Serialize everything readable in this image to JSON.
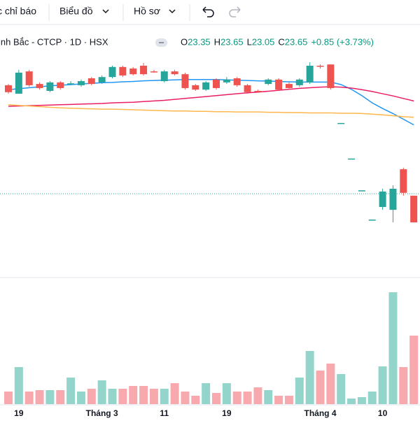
{
  "toolbar": {
    "items": [
      "c chỉ báo",
      "Biểu đồ",
      "Hồ sơ"
    ]
  },
  "legend": {
    "symbol": "inh Bắc - CTCP · 1D · HSX",
    "ohlc": [
      {
        "label": "O",
        "value": 23.35
      },
      {
        "label": "H",
        "value": 23.65
      },
      {
        "label": "L",
        "value": 23.05
      },
      {
        "label": "C",
        "value": 23.65
      }
    ],
    "change": "+0.85 (+3.73%)"
  },
  "chart_data": {
    "type": "candlestick",
    "categories": [
      null,
      "19",
      null,
      null,
      null,
      null,
      null,
      null,
      null,
      "Tháng 3",
      null,
      null,
      null,
      null,
      null,
      "11",
      null,
      null,
      null,
      null,
      null,
      "19",
      null,
      null,
      null,
      null,
      null,
      null,
      null,
      null,
      "Tháng 4",
      null,
      null,
      null,
      null,
      null,
      "10",
      null,
      null,
      null
    ],
    "open": [
      23.18,
      22.91,
      23.62,
      23.22,
      23.0,
      23.27,
      23.22,
      23.18,
      23.4,
      23.27,
      23.44,
      23.76,
      23.71,
      23.8,
      23.62,
      23.31,
      23.62,
      23.53,
      23.18,
      23.04,
      23.36,
      23.27,
      23.4,
      23.18,
      23.0,
      23.22,
      23.36,
      23.22,
      23.18,
      23.27,
      23.8,
      23.84,
      21.98,
      20.85,
      19.84,
      18.91,
      19.31,
      19.22,
      20.51,
      19.67
    ],
    "high": [
      23.22,
      23.67,
      23.67,
      23.27,
      23.31,
      23.31,
      23.31,
      23.36,
      23.44,
      23.49,
      23.8,
      23.8,
      23.76,
      23.89,
      23.67,
      23.67,
      23.67,
      23.58,
      23.22,
      23.31,
      23.4,
      23.44,
      23.44,
      23.22,
      23.04,
      23.4,
      23.4,
      23.27,
      23.4,
      23.91,
      23.84,
      23.84,
      21.98,
      20.85,
      19.84,
      18.91,
      19.89,
      20.0,
      20.56,
      19.67
    ],
    "low": [
      22.91,
      22.91,
      23.13,
      23.04,
      22.96,
      23.04,
      23.18,
      23.13,
      23.18,
      23.22,
      23.4,
      23.44,
      23.49,
      23.49,
      23.58,
      23.27,
      23.49,
      23.04,
      23.0,
      23.0,
      23.04,
      23.22,
      23.13,
      22.91,
      22.96,
      23.18,
      23.0,
      23.04,
      23.13,
      23.22,
      23.71,
      23.04,
      21.98,
      20.85,
      19.84,
      18.91,
      19.22,
      18.82,
      19.67,
      18.82
    ],
    "close": [
      22.96,
      23.58,
      23.18,
      23.09,
      23.27,
      23.09,
      23.24,
      23.31,
      23.22,
      23.44,
      23.76,
      23.49,
      23.53,
      23.53,
      23.6,
      23.62,
      23.53,
      23.09,
      23.04,
      23.27,
      23.09,
      23.36,
      23.18,
      22.96,
      22.98,
      23.36,
      23.04,
      23.09,
      23.36,
      23.8,
      23.78,
      23.09,
      21.98,
      20.85,
      19.84,
      18.91,
      19.8,
      19.89,
      19.76,
      18.82
    ],
    "volume": [
      18,
      53,
      18,
      20,
      20,
      20,
      38,
      18,
      22,
      34,
      22,
      22,
      26,
      26,
      22,
      22,
      30,
      18,
      12,
      30,
      16,
      30,
      18,
      18,
      24,
      20,
      12,
      12,
      38,
      76,
      48,
      58,
      43,
      8,
      10,
      18,
      54,
      160,
      53,
      98
    ],
    "lines": [
      {
        "color": "#2196f3",
        "values": [
          23.04,
          23.07,
          23.1,
          23.13,
          23.16,
          23.18,
          23.2,
          23.22,
          23.24,
          23.26,
          23.27,
          23.29,
          23.3,
          23.32,
          23.33,
          23.34,
          23.35,
          23.36,
          23.36,
          23.36,
          23.36,
          23.35,
          23.34,
          23.33,
          23.32,
          23.31,
          23.3,
          23.29,
          23.28,
          23.28,
          23.28,
          23.28,
          23.2,
          23.05,
          22.85,
          22.62,
          22.44,
          22.28,
          22.1,
          21.92
        ]
      },
      {
        "color": "#e91e63",
        "values": [
          22.51,
          22.52,
          22.53,
          22.54,
          22.55,
          22.56,
          22.57,
          22.58,
          22.59,
          22.6,
          22.62,
          22.63,
          22.64,
          22.66,
          22.68,
          22.7,
          22.73,
          22.76,
          22.79,
          22.82,
          22.85,
          22.88,
          22.91,
          22.94,
          22.96,
          22.99,
          23.02,
          23.05,
          23.08,
          23.1,
          23.12,
          23.13,
          23.12,
          23.09,
          23.04,
          22.98,
          22.91,
          22.84,
          22.76,
          22.68
        ]
      },
      {
        "color": "#ffb74d",
        "values": [
          22.56,
          22.54,
          22.52,
          22.5,
          22.48,
          22.46,
          22.45,
          22.44,
          22.43,
          22.42,
          22.42,
          22.41,
          22.4,
          22.39,
          22.38,
          22.37,
          22.36,
          22.36,
          22.35,
          22.35,
          22.34,
          22.34,
          22.33,
          22.33,
          22.33,
          22.32,
          22.32,
          22.31,
          22.31,
          22.3,
          22.3,
          22.3,
          22.29,
          22.29,
          22.28,
          22.26,
          22.24,
          22.21,
          22.18,
          22.16
        ]
      }
    ],
    "price_line": 19.73,
    "ylim": [
      17,
      25
    ],
    "volume_lim": [
      0,
      180
    ],
    "up_color": "#26a69a",
    "down_color": "#ef5350",
    "up_volume_color": "#93d5cb",
    "down_volume_color": "#f8a9ad"
  }
}
